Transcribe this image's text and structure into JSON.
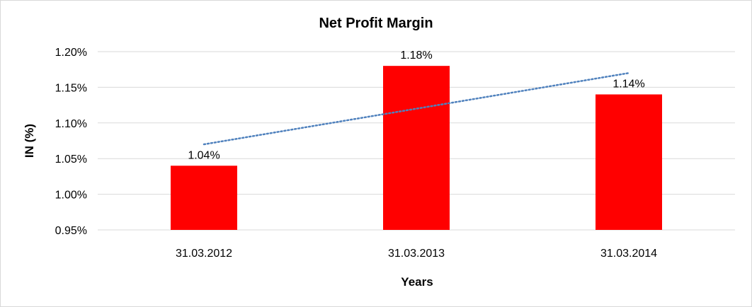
{
  "chart_data": {
    "type": "bar",
    "title": "Net Profit Margin",
    "xlabel": "Years",
    "ylabel": "IN (%)",
    "categories": [
      "31.03.2012",
      "31.03.2013",
      "31.03.2014"
    ],
    "series": [
      {
        "values": [
          1.04,
          1.18,
          1.14
        ],
        "color": "#ff0000"
      }
    ],
    "data_labels": [
      "1.04%",
      "1.18%",
      "1.14%"
    ],
    "y_ticks": [
      0.95,
      1.0,
      1.05,
      1.1,
      1.15,
      1.2
    ],
    "y_tick_labels": [
      "0.95%",
      "1.00%",
      "1.05%",
      "1.10%",
      "1.15%",
      "1.20%"
    ],
    "ylim": [
      0.95,
      1.2
    ],
    "grid": true,
    "legend": "none",
    "trendline": {
      "type": "linear",
      "style": "dotted",
      "color": "#4f81bd"
    }
  }
}
